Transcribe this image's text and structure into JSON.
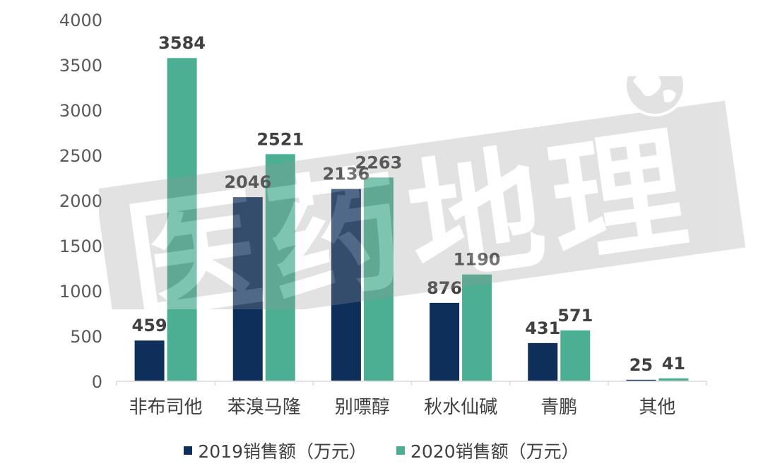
{
  "chart_data": {
    "type": "bar",
    "categories": [
      "非布司他",
      "苯溴马隆",
      "别嘌醇",
      "秋水仙碱",
      "青鹏",
      "其他"
    ],
    "series": [
      {
        "name": "2019销售额（万元）",
        "values": [
          459,
          2046,
          2136,
          876,
          431,
          25
        ],
        "color": "#0d2f5a"
      },
      {
        "name": "2020销售额（万元）",
        "values": [
          3584,
          2521,
          2263,
          1190,
          571,
          41
        ],
        "color": "#4cae93"
      }
    ],
    "yticks": [
      "0",
      "500",
      "1000",
      "1500",
      "2000",
      "2500",
      "3000",
      "3500",
      "4000"
    ],
    "ylim": [
      0,
      4000
    ],
    "grid": false,
    "legend_position": "bottom"
  },
  "watermark": {
    "text": "医药地理",
    "icon": "globe-icon"
  }
}
